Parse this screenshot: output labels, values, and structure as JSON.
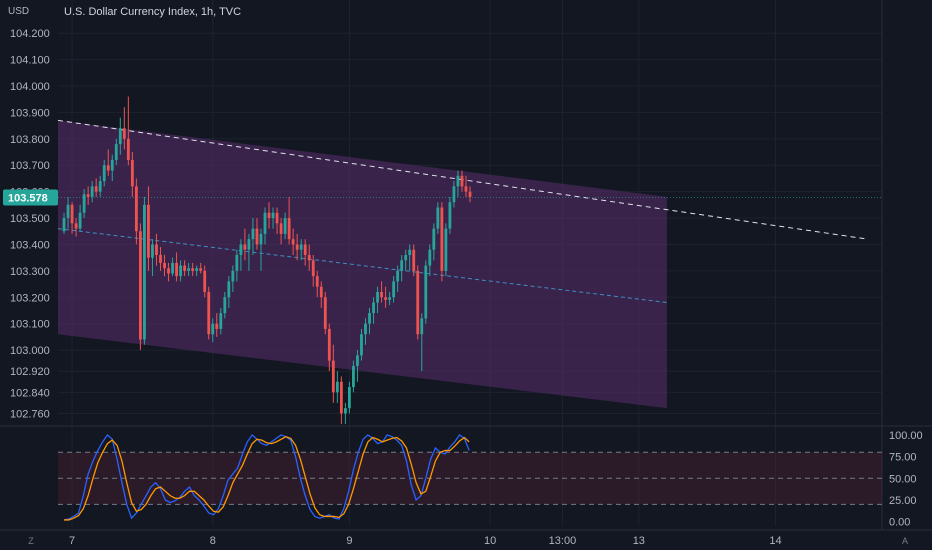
{
  "header": {
    "currency_label": "USD",
    "title": "U.S. Dollar Currency Index, 1h, TVC"
  },
  "corner": {
    "left_button": "Z",
    "right_button": "A"
  },
  "colors": {
    "background": "#131722",
    "up": "#26a69a",
    "down": "#ef5350",
    "channel_fill": "#5a2d6e",
    "regression_line": "#3d8fbf",
    "price_tag": "#26a69a",
    "stoch_k": "#2962ff",
    "stoch_d": "#ff9800",
    "text": "#b2b5be"
  },
  "chart_data": [
    {
      "type": "candlestick",
      "title": "U.S. Dollar Currency Index, 1h, TVC",
      "ylabel": "USD",
      "last_price_label": "103.578",
      "ylim": [
        102.72,
        104.25
      ],
      "yticks": [
        "104.200",
        "104.100",
        "104.000",
        "103.900",
        "103.800",
        "103.700",
        "103.600",
        "103.500",
        "103.400",
        "103.300",
        "103.200",
        "103.100",
        "103.000",
        "102.920",
        "102.840",
        "102.760"
      ],
      "ytick_values": [
        104.2,
        104.1,
        104.0,
        103.9,
        103.8,
        103.7,
        103.6,
        103.5,
        103.4,
        103.3,
        103.2,
        103.1,
        103.0,
        102.92,
        102.84,
        102.76
      ],
      "xticks": [
        {
          "label": "7",
          "t": 2
        },
        {
          "label": "8",
          "t": 37
        },
        {
          "label": "9",
          "t": 71
        },
        {
          "label": "10",
          "t": 106
        },
        {
          "label": "13:00",
          "t": 124
        },
        {
          "label": "13",
          "t": 143
        },
        {
          "label": "14",
          "t": 177
        }
      ],
      "x_range": [
        -1.5,
        203.5
      ],
      "candles": [
        [
          103.45,
          103.52,
          103.44,
          103.5
        ],
        [
          103.5,
          103.58,
          103.46,
          103.55
        ],
        [
          103.55,
          103.56,
          103.44,
          103.48
        ],
        [
          103.48,
          103.5,
          103.43,
          103.46
        ],
        [
          103.46,
          103.55,
          103.45,
          103.52
        ],
        [
          103.52,
          103.61,
          103.5,
          103.59
        ],
        [
          103.59,
          103.62,
          103.55,
          103.58
        ],
        [
          103.58,
          103.64,
          103.56,
          103.62
        ],
        [
          103.62,
          103.65,
          103.58,
          103.6
        ],
        [
          103.6,
          103.66,
          103.58,
          103.64
        ],
        [
          103.64,
          103.72,
          103.62,
          103.7
        ],
        [
          103.7,
          103.76,
          103.66,
          103.68
        ],
        [
          103.68,
          103.74,
          103.64,
          103.72
        ],
        [
          103.72,
          103.8,
          103.7,
          103.78
        ],
        [
          103.78,
          103.88,
          103.74,
          103.84
        ],
        [
          103.84,
          103.92,
          103.76,
          103.8
        ],
        [
          103.8,
          103.96,
          103.7,
          103.72
        ],
        [
          103.72,
          103.75,
          103.58,
          103.62
        ],
        [
          103.62,
          103.65,
          103.4,
          103.45
        ],
        [
          103.45,
          103.48,
          103.0,
          103.04
        ],
        [
          103.04,
          103.58,
          103.02,
          103.55
        ],
        [
          103.55,
          103.62,
          103.3,
          103.35
        ],
        [
          103.35,
          103.42,
          103.28,
          103.4
        ],
        [
          103.4,
          103.44,
          103.32,
          103.36
        ],
        [
          103.36,
          103.39,
          103.3,
          103.33
        ],
        [
          103.33,
          103.36,
          103.28,
          103.31
        ],
        [
          103.31,
          103.33,
          103.26,
          103.29
        ],
        [
          103.29,
          103.35,
          103.28,
          103.33
        ],
        [
          103.33,
          103.37,
          103.26,
          103.28
        ],
        [
          103.28,
          103.34,
          103.26,
          103.32
        ],
        [
          103.32,
          103.34,
          103.28,
          103.3
        ],
        [
          103.3,
          103.33,
          103.28,
          103.31
        ],
        [
          103.31,
          103.33,
          103.28,
          103.3
        ],
        [
          103.3,
          103.32,
          103.28,
          103.31
        ],
        [
          103.31,
          103.33,
          103.29,
          103.3
        ],
        [
          103.3,
          103.32,
          103.2,
          103.22
        ],
        [
          103.22,
          103.24,
          103.04,
          103.06
        ],
        [
          103.06,
          103.12,
          103.03,
          103.1
        ],
        [
          103.1,
          103.14,
          103.05,
          103.08
        ],
        [
          103.08,
          103.16,
          103.06,
          103.14
        ],
        [
          103.14,
          103.22,
          103.12,
          103.2
        ],
        [
          103.2,
          103.28,
          103.16,
          103.26
        ],
        [
          103.26,
          103.32,
          103.22,
          103.3
        ],
        [
          103.3,
          103.38,
          103.26,
          103.36
        ],
        [
          103.36,
          103.42,
          103.3,
          103.4
        ],
        [
          103.4,
          103.46,
          103.34,
          103.38
        ],
        [
          103.38,
          103.44,
          103.3,
          103.42
        ],
        [
          103.42,
          103.5,
          103.36,
          103.46
        ],
        [
          103.46,
          103.5,
          103.38,
          103.4
        ],
        [
          103.4,
          103.46,
          103.3,
          103.44
        ],
        [
          103.44,
          103.54,
          103.4,
          103.52
        ],
        [
          103.52,
          103.56,
          103.46,
          103.5
        ],
        [
          103.5,
          103.54,
          103.46,
          103.52
        ],
        [
          103.52,
          103.54,
          103.44,
          103.48
        ],
        [
          103.48,
          103.5,
          103.4,
          103.44
        ],
        [
          103.44,
          103.52,
          103.42,
          103.5
        ],
        [
          103.5,
          103.58,
          103.4,
          103.42
        ],
        [
          103.42,
          103.46,
          103.36,
          103.4
        ],
        [
          103.4,
          103.44,
          103.34,
          103.38
        ],
        [
          103.38,
          103.42,
          103.34,
          103.4
        ],
        [
          103.4,
          103.42,
          103.32,
          103.36
        ],
        [
          103.36,
          103.4,
          103.3,
          103.34
        ],
        [
          103.34,
          103.36,
          103.24,
          103.28
        ],
        [
          103.28,
          103.3,
          103.2,
          103.24
        ],
        [
          103.24,
          103.26,
          103.16,
          103.2
        ],
        [
          103.2,
          103.22,
          103.06,
          103.08
        ],
        [
          103.08,
          103.1,
          102.92,
          102.96
        ],
        [
          102.96,
          103.02,
          102.8,
          102.84
        ],
        [
          102.84,
          102.92,
          102.8,
          102.88
        ],
        [
          102.88,
          102.9,
          102.72,
          102.76
        ],
        [
          102.76,
          102.8,
          102.72,
          102.78
        ],
        [
          102.78,
          102.88,
          102.76,
          102.86
        ],
        [
          102.86,
          102.96,
          102.84,
          102.94
        ],
        [
          102.94,
          103.0,
          102.88,
          102.98
        ],
        [
          102.98,
          103.08,
          102.96,
          103.06
        ],
        [
          103.06,
          103.12,
          103.02,
          103.1
        ],
        [
          103.1,
          103.16,
          103.06,
          103.14
        ],
        [
          103.14,
          103.2,
          103.1,
          103.18
        ],
        [
          103.18,
          103.24,
          103.14,
          103.22
        ],
        [
          103.22,
          103.26,
          103.18,
          103.2
        ],
        [
          103.2,
          103.24,
          103.16,
          103.19
        ],
        [
          103.19,
          103.22,
          103.17,
          103.2
        ],
        [
          103.2,
          103.28,
          103.18,
          103.26
        ],
        [
          103.26,
          103.32,
          103.22,
          103.3
        ],
        [
          103.3,
          103.36,
          103.26,
          103.34
        ],
        [
          103.34,
          103.38,
          103.3,
          103.36
        ],
        [
          103.36,
          103.4,
          103.3,
          103.38
        ],
        [
          103.38,
          103.4,
          103.28,
          103.3
        ],
        [
          103.3,
          103.32,
          103.04,
          103.06
        ],
        [
          103.06,
          103.14,
          102.92,
          103.12
        ],
        [
          103.12,
          103.34,
          103.1,
          103.32
        ],
        [
          103.32,
          103.4,
          103.28,
          103.38
        ],
        [
          103.38,
          103.48,
          103.34,
          103.46
        ],
        [
          103.46,
          103.56,
          103.44,
          103.54
        ],
        [
          103.54,
          103.56,
          103.26,
          103.3
        ],
        [
          103.3,
          103.48,
          103.28,
          103.46
        ],
        [
          103.46,
          103.58,
          103.44,
          103.56
        ],
        [
          103.56,
          103.64,
          103.54,
          103.62
        ],
        [
          103.62,
          103.68,
          103.58,
          103.66
        ],
        [
          103.66,
          103.68,
          103.6,
          103.62
        ],
        [
          103.62,
          103.66,
          103.58,
          103.6
        ],
        [
          103.6,
          103.62,
          103.56,
          103.58
        ]
      ],
      "channel": {
        "upper": [
          [
            -1.5,
            103.87
          ],
          [
            150,
            103.58
          ]
        ],
        "mid": [
          [
            -1.5,
            103.46
          ],
          [
            150,
            103.18
          ]
        ],
        "lower": [
          [
            -1.5,
            103.06
          ],
          [
            150,
            102.78
          ]
        ],
        "extension": [
          [
            26,
            103.87
          ],
          [
            200,
            103.42
          ]
        ],
        "fill_until": 150
      }
    },
    {
      "type": "line",
      "name": "Stochastic",
      "ylim": [
        -5,
        108
      ],
      "yticks": [
        "100.00",
        "75.00",
        "50.00",
        "25.00",
        "0.00"
      ],
      "ytick_values": [
        100,
        75,
        50,
        25,
        0
      ],
      "bands": [
        20,
        50,
        80
      ],
      "series": [
        {
          "key": "k",
          "values": [
            2,
            3,
            6,
            10,
            30,
            55,
            70,
            82,
            92,
            100,
            95,
            72,
            45,
            20,
            4,
            10,
            20,
            30,
            40,
            45,
            38,
            25,
            22,
            24,
            28,
            35,
            40,
            30,
            25,
            18,
            10,
            8,
            15,
            30,
            48,
            55,
            62,
            78,
            92,
            100,
            95,
            90,
            88,
            92,
            96,
            100,
            98,
            94,
            75,
            50,
            30,
            14,
            6,
            4,
            6,
            8,
            4,
            3,
            15,
            35,
            60,
            80,
            95,
            100,
            96,
            90,
            92,
            100,
            98,
            94,
            88,
            70,
            42,
            25,
            30,
            50,
            72,
            85,
            80,
            78,
            86,
            92,
            100,
            96,
            82
          ]
        },
        {
          "key": "d",
          "values": [
            2,
            2,
            4,
            7,
            15,
            30,
            50,
            68,
            80,
            90,
            94,
            88,
            70,
            45,
            22,
            12,
            14,
            20,
            30,
            38,
            40,
            35,
            30,
            27,
            27,
            30,
            35,
            35,
            30,
            25,
            18,
            12,
            11,
            17,
            30,
            45,
            55,
            65,
            78,
            90,
            95,
            94,
            91,
            90,
            92,
            95,
            98,
            96,
            88,
            72,
            52,
            32,
            16,
            8,
            6,
            6,
            6,
            5,
            9,
            20,
            38,
            58,
            78,
            92,
            97,
            95,
            92,
            94,
            96,
            97,
            93,
            85,
            66,
            45,
            32,
            35,
            52,
            70,
            80,
            82,
            82,
            87,
            93,
            97,
            92
          ]
        }
      ]
    }
  ]
}
